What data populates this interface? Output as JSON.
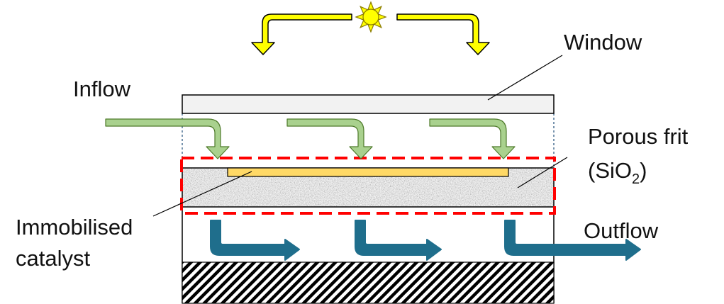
{
  "labels": {
    "window": "Window",
    "inflow": "Inflow",
    "porous_frit_line1": "Porous frit",
    "porous_frit_line2_prefix": "(SiO",
    "porous_frit_line2_subscript": "2",
    "porous_frit_line2_suffix": ")",
    "catalyst_line1": "Immobilised",
    "catalyst_line2": "catalyst",
    "outflow": "Outflow"
  },
  "colors": {
    "sun": "#ffff00",
    "sun_outline": "#8a7a00",
    "light_arrows": "#ffff00",
    "inflow_arrows": "#a9d18e",
    "inflow_outline": "#4e7a2a",
    "outflow_arrows": "#1f6e8c",
    "catalyst": "#ffd966",
    "frit_highlight_border": "#ff0000",
    "window_fill": "#f2f2f2"
  },
  "icons": {
    "sun": "sun-icon",
    "light": "curved-arrow-icon",
    "inflow": "bent-arrow-icon",
    "outflow": "bent-arrow-icon"
  }
}
